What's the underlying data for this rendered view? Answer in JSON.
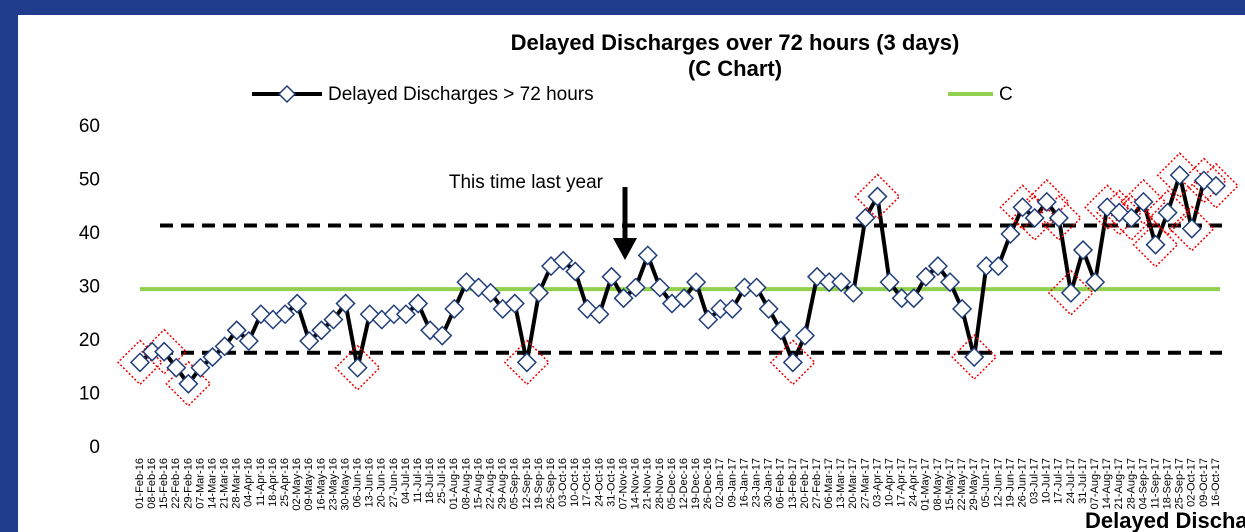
{
  "chart_data": {
    "type": "line",
    "title": "Delayed Discharges over 72 hours (3 days)",
    "subtitle": "(C Chart)",
    "footer": "Delayed Discharges",
    "annotation": "This time last year",
    "annotation_index": 40,
    "categories": [
      "01-Feb-16",
      "08-Feb-16",
      "15-Feb-16",
      "22-Feb-16",
      "29-Feb-16",
      "07-Mar-16",
      "14-Mar-16",
      "21-Mar-16",
      "28-Mar-16",
      "04-Apr-16",
      "11-Apr-16",
      "18-Apr-16",
      "25-Apr-16",
      "02-May-16",
      "09-May-16",
      "16-May-16",
      "23-May-16",
      "30-May-16",
      "06-Jun-16",
      "13-Jun-16",
      "20-Jun-16",
      "27-Jun-16",
      "04-Jul-16",
      "11-Jul-16",
      "18-Jul-16",
      "25-Jul-16",
      "01-Aug-16",
      "08-Aug-16",
      "15-Aug-16",
      "22-Aug-16",
      "29-Aug-16",
      "05-Sep-16",
      "12-Sep-16",
      "19-Sep-16",
      "26-Sep-16",
      "03-Oct-16",
      "10-Oct-16",
      "17-Oct-16",
      "24-Oct-16",
      "31-Oct-16",
      "07-Nov-16",
      "14-Nov-16",
      "21-Nov-16",
      "28-Nov-16",
      "05-Dec-16",
      "12-Dec-16",
      "19-Dec-16",
      "26-Dec-16",
      "02-Jan-17",
      "09-Jan-17",
      "16-Jan-17",
      "23-Jan-17",
      "30-Jan-17",
      "06-Feb-17",
      "13-Feb-17",
      "20-Feb-17",
      "27-Feb-17",
      "06-Mar-17",
      "13-Mar-17",
      "20-Mar-17",
      "27-Mar-17",
      "03-Apr-17",
      "10-Apr-17",
      "17-Apr-17",
      "24-Apr-17",
      "01-May-17",
      "08-May-17",
      "15-May-17",
      "22-May-17",
      "29-May-17",
      "05-Jun-17",
      "12-Jun-17",
      "19-Jun-17",
      "26-Jun-17",
      "03-Jul-17",
      "10-Jul-17",
      "17-Jul-17",
      "24-Jul-17",
      "31-Jul-17",
      "07-Aug-17",
      "14-Aug-17",
      "21-Aug-17",
      "28-Aug-17",
      "04-Sep-17",
      "11-Sep-17",
      "18-Sep-17",
      "25-Sep-17",
      "02-Oct-17",
      "09-Oct-17",
      "16-Oct-17"
    ],
    "series": [
      {
        "name": "Delayed Discharges > 72 hours",
        "color": "#000000",
        "values": [
          16,
          18,
          18,
          15,
          12,
          15,
          17,
          19,
          22,
          20,
          25,
          24,
          25,
          27,
          20,
          22,
          24,
          27,
          15,
          25,
          24,
          25,
          25,
          27,
          22,
          21,
          26,
          31,
          30,
          29,
          26,
          27,
          16,
          29,
          34,
          35,
          33,
          26,
          25,
          32,
          28,
          30,
          36,
          30,
          27,
          28,
          31,
          24,
          26,
          26,
          30,
          30,
          26,
          22,
          16,
          21,
          32,
          31,
          31,
          29,
          43,
          47,
          31,
          28,
          28,
          32,
          34,
          31,
          26,
          17,
          34,
          34,
          40,
          45,
          43,
          46,
          43,
          29,
          37,
          31,
          45,
          44,
          43,
          46,
          38,
          44,
          51,
          41,
          50,
          49
        ]
      },
      {
        "name": "C",
        "color": "#92d050",
        "value": 29.7
      }
    ],
    "control_limits": [
      41.6,
      17.8
    ],
    "highlighted": [
      0,
      2,
      4,
      18,
      32,
      54,
      61,
      69,
      73,
      74,
      75,
      76,
      77,
      80,
      81,
      82,
      83,
      84,
      85,
      86,
      87,
      88,
      89
    ],
    "ylim": [
      0,
      60
    ],
    "yticks": [
      0,
      10,
      20,
      30,
      40,
      50,
      60
    ]
  }
}
